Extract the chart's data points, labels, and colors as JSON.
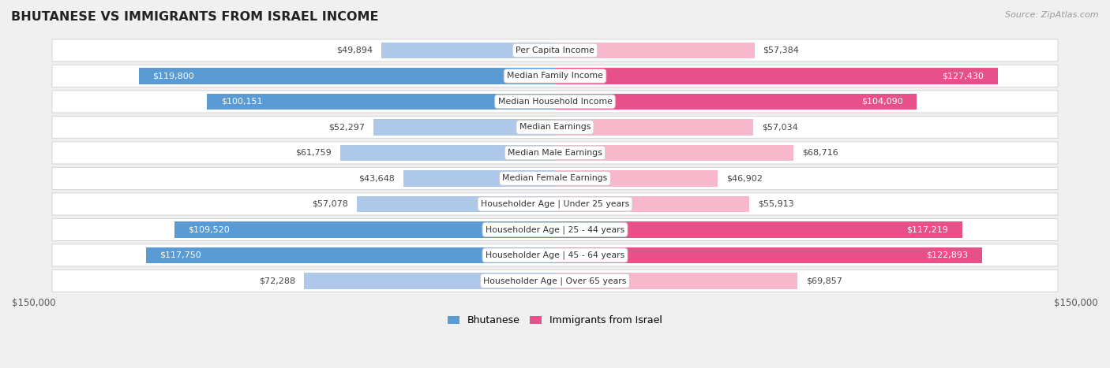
{
  "title": "BHUTANESE VS IMMIGRANTS FROM ISRAEL INCOME",
  "source": "Source: ZipAtlas.com",
  "categories": [
    "Per Capita Income",
    "Median Family Income",
    "Median Household Income",
    "Median Earnings",
    "Median Male Earnings",
    "Median Female Earnings",
    "Householder Age | Under 25 years",
    "Householder Age | 25 - 44 years",
    "Householder Age | 45 - 64 years",
    "Householder Age | Over 65 years"
  ],
  "bhutanese_values": [
    49894,
    119800,
    100151,
    52297,
    61759,
    43648,
    57078,
    109520,
    117750,
    72288
  ],
  "israel_values": [
    57384,
    127430,
    104090,
    57034,
    68716,
    46902,
    55913,
    117219,
    122893,
    69857
  ],
  "bhutanese_color_light": "#adc8e8",
  "bhutanese_color_dark": "#5b9bd5",
  "israel_color_light": "#f7b8cb",
  "israel_color_dark": "#e8508a",
  "max_val": 150000,
  "large_threshold": 80000,
  "label_bhutanese": "Bhutanese",
  "label_israel": "Immigrants from Israel",
  "bg_color": "#f0f0f0",
  "row_bg_color": "#ffffff",
  "row_border_color": "#d8d8d8",
  "text_dark": "#444444",
  "text_white": "#ffffff"
}
